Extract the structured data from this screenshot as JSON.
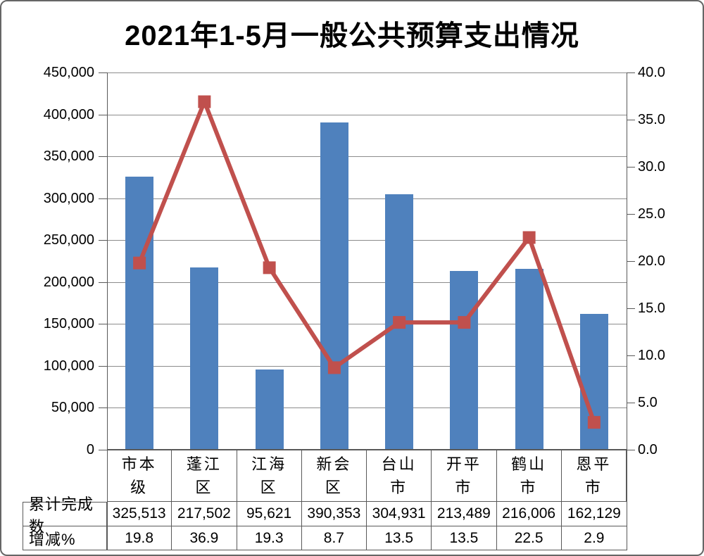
{
  "title": "2021年1-5月一般公共预算支出情况",
  "chart_data": {
    "type": "combo-bar-line",
    "categories": [
      "市本级",
      "蓬江区",
      "江海区",
      "新会区",
      "台山市",
      "开平市",
      "鹤山市",
      "恩平市"
    ],
    "series": [
      {
        "name": "累计完成数",
        "type": "bar",
        "yaxis": "left",
        "color": "#4F81BD",
        "values": [
          325513,
          217502,
          95621,
          390353,
          304931,
          213489,
          216006,
          162129
        ]
      },
      {
        "name": "增减%",
        "type": "line",
        "yaxis": "right",
        "color": "#C0504D",
        "values": [
          19.8,
          36.9,
          19.3,
          8.7,
          13.5,
          13.5,
          22.5,
          2.9
        ]
      }
    ],
    "left_axis": {
      "min": 0,
      "max": 450000,
      "step": 50000
    },
    "right_axis": {
      "min": 0,
      "max": 40,
      "step": 5
    },
    "grid": true,
    "legend": "none"
  },
  "table": {
    "rows": [
      {
        "label": "累计完成数",
        "values": [
          "325,513",
          "217,502",
          "95,621",
          "390,353",
          "304,931",
          "213,489",
          "216,006",
          "162,129"
        ]
      },
      {
        "label": "增减%",
        "values": [
          "19.8",
          "36.9",
          "19.3",
          "8.7",
          "13.5",
          "13.5",
          "22.5",
          "2.9"
        ]
      }
    ]
  },
  "colors": {
    "bar": "#4F81BD",
    "line": "#C0504D",
    "gridline": "#8C8C8C",
    "axis": "#595959"
  }
}
